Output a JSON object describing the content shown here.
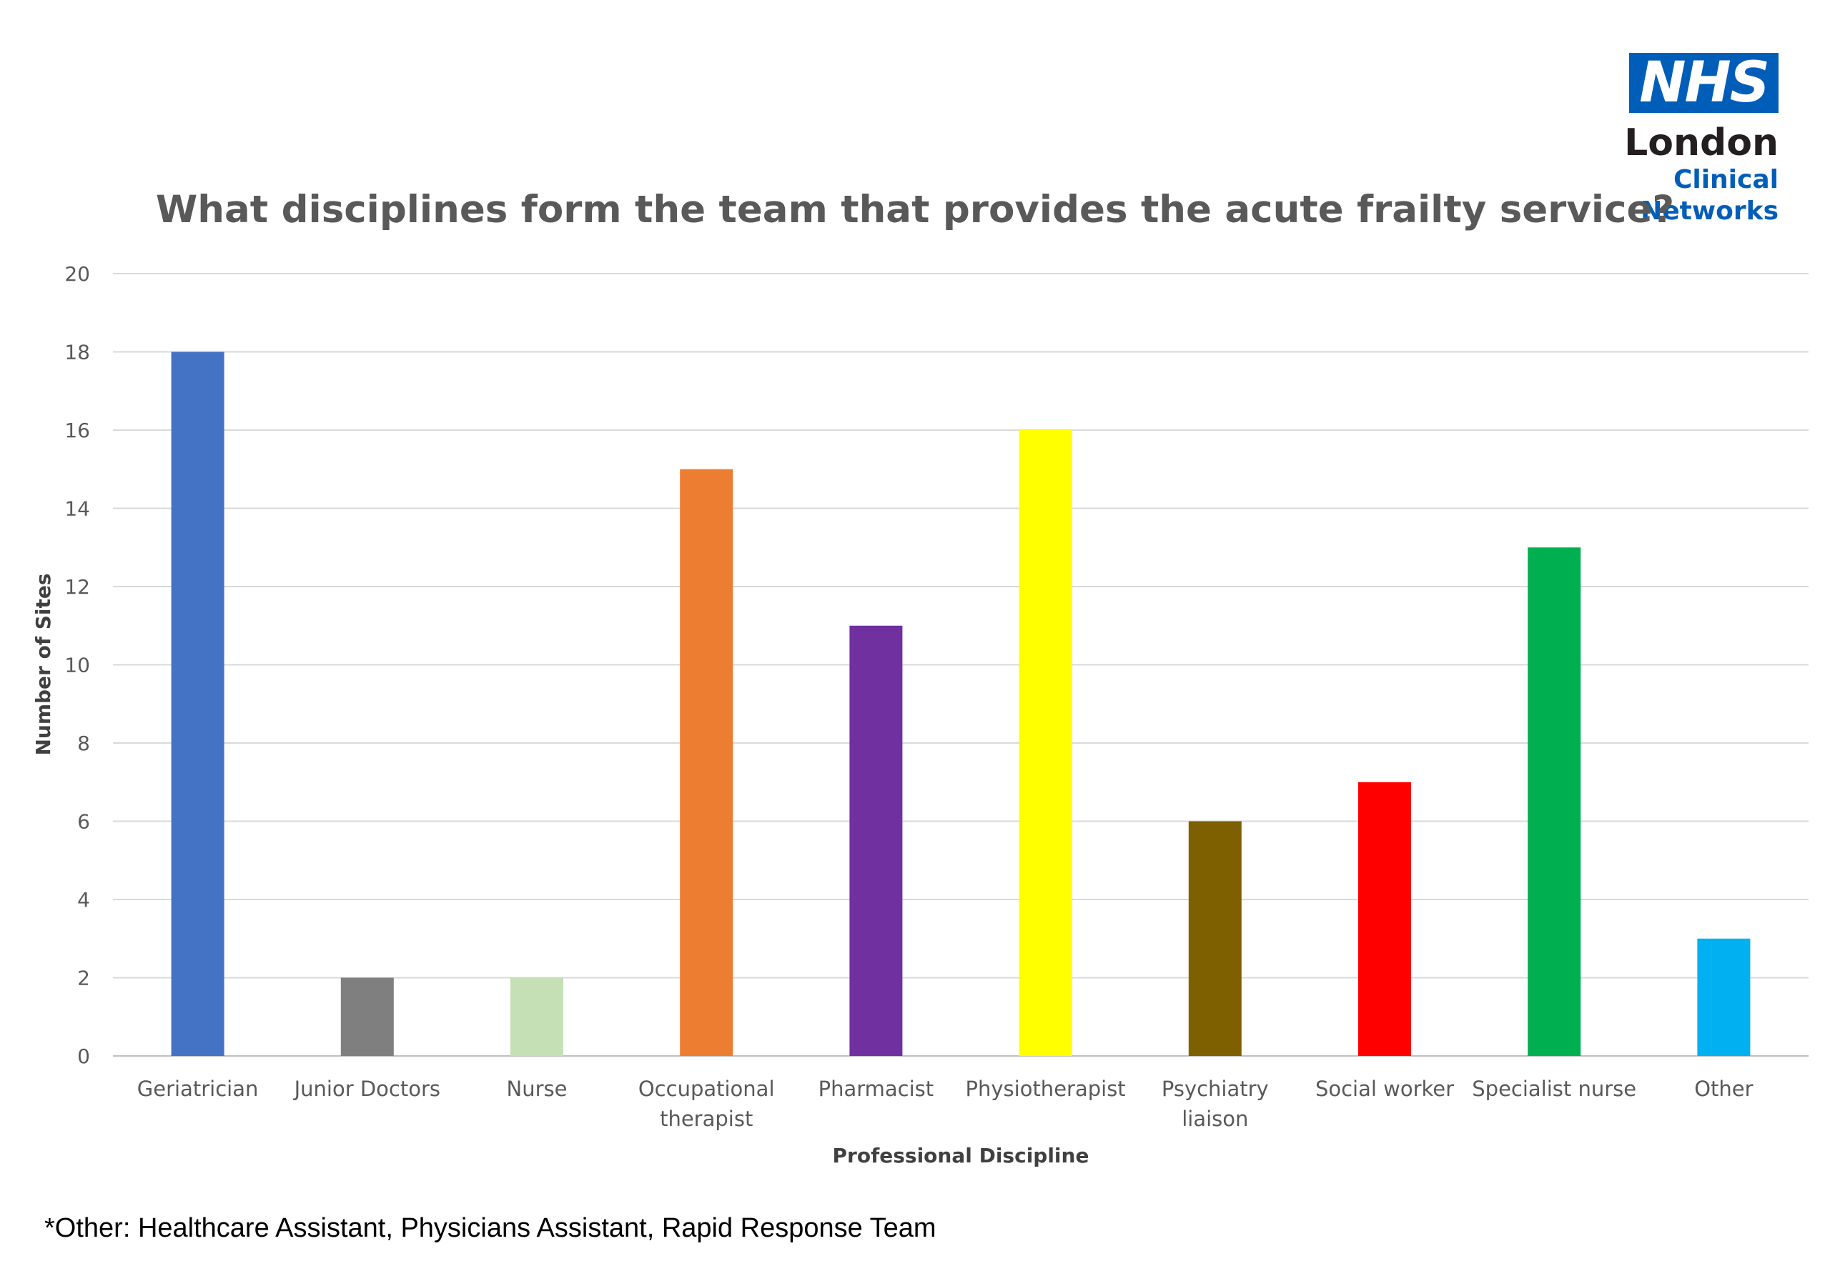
{
  "logo": {
    "mark": "NHS",
    "line1": "London",
    "line2": "Clinical Networks",
    "brand_color": "#005EB8"
  },
  "footnote": "*Other: Healthcare Assistant, Physicians Assistant, Rapid Response Team",
  "chart_data": {
    "type": "bar",
    "title": "What disciplines form the team that provides the acute frailty service?",
    "xlabel": "Professional Discipline",
    "ylabel": "Number of Sites",
    "ylim": [
      0,
      20
    ],
    "yticks": [
      0,
      2,
      4,
      6,
      8,
      10,
      12,
      14,
      16,
      18,
      20
    ],
    "grid": true,
    "legend": "none",
    "categories": [
      [
        "Geriatrician"
      ],
      [
        "Junior Doctors"
      ],
      [
        "Nurse"
      ],
      [
        "Occupational",
        "therapist"
      ],
      [
        "Pharmacist"
      ],
      [
        "Physiotherapist"
      ],
      [
        "Psychiatry",
        "liaison"
      ],
      [
        "Social worker"
      ],
      [
        "Specialist nurse"
      ],
      [
        "Other"
      ]
    ],
    "values": [
      18,
      2,
      2,
      15,
      11,
      16,
      6,
      7,
      13,
      3
    ],
    "colors": [
      "#4472C4",
      "#7F7F7F",
      "#C5E0B4",
      "#ED7D31",
      "#7030A0",
      "#FFFF00",
      "#7F6000",
      "#FF0000",
      "#00B050",
      "#00B0F0"
    ]
  }
}
